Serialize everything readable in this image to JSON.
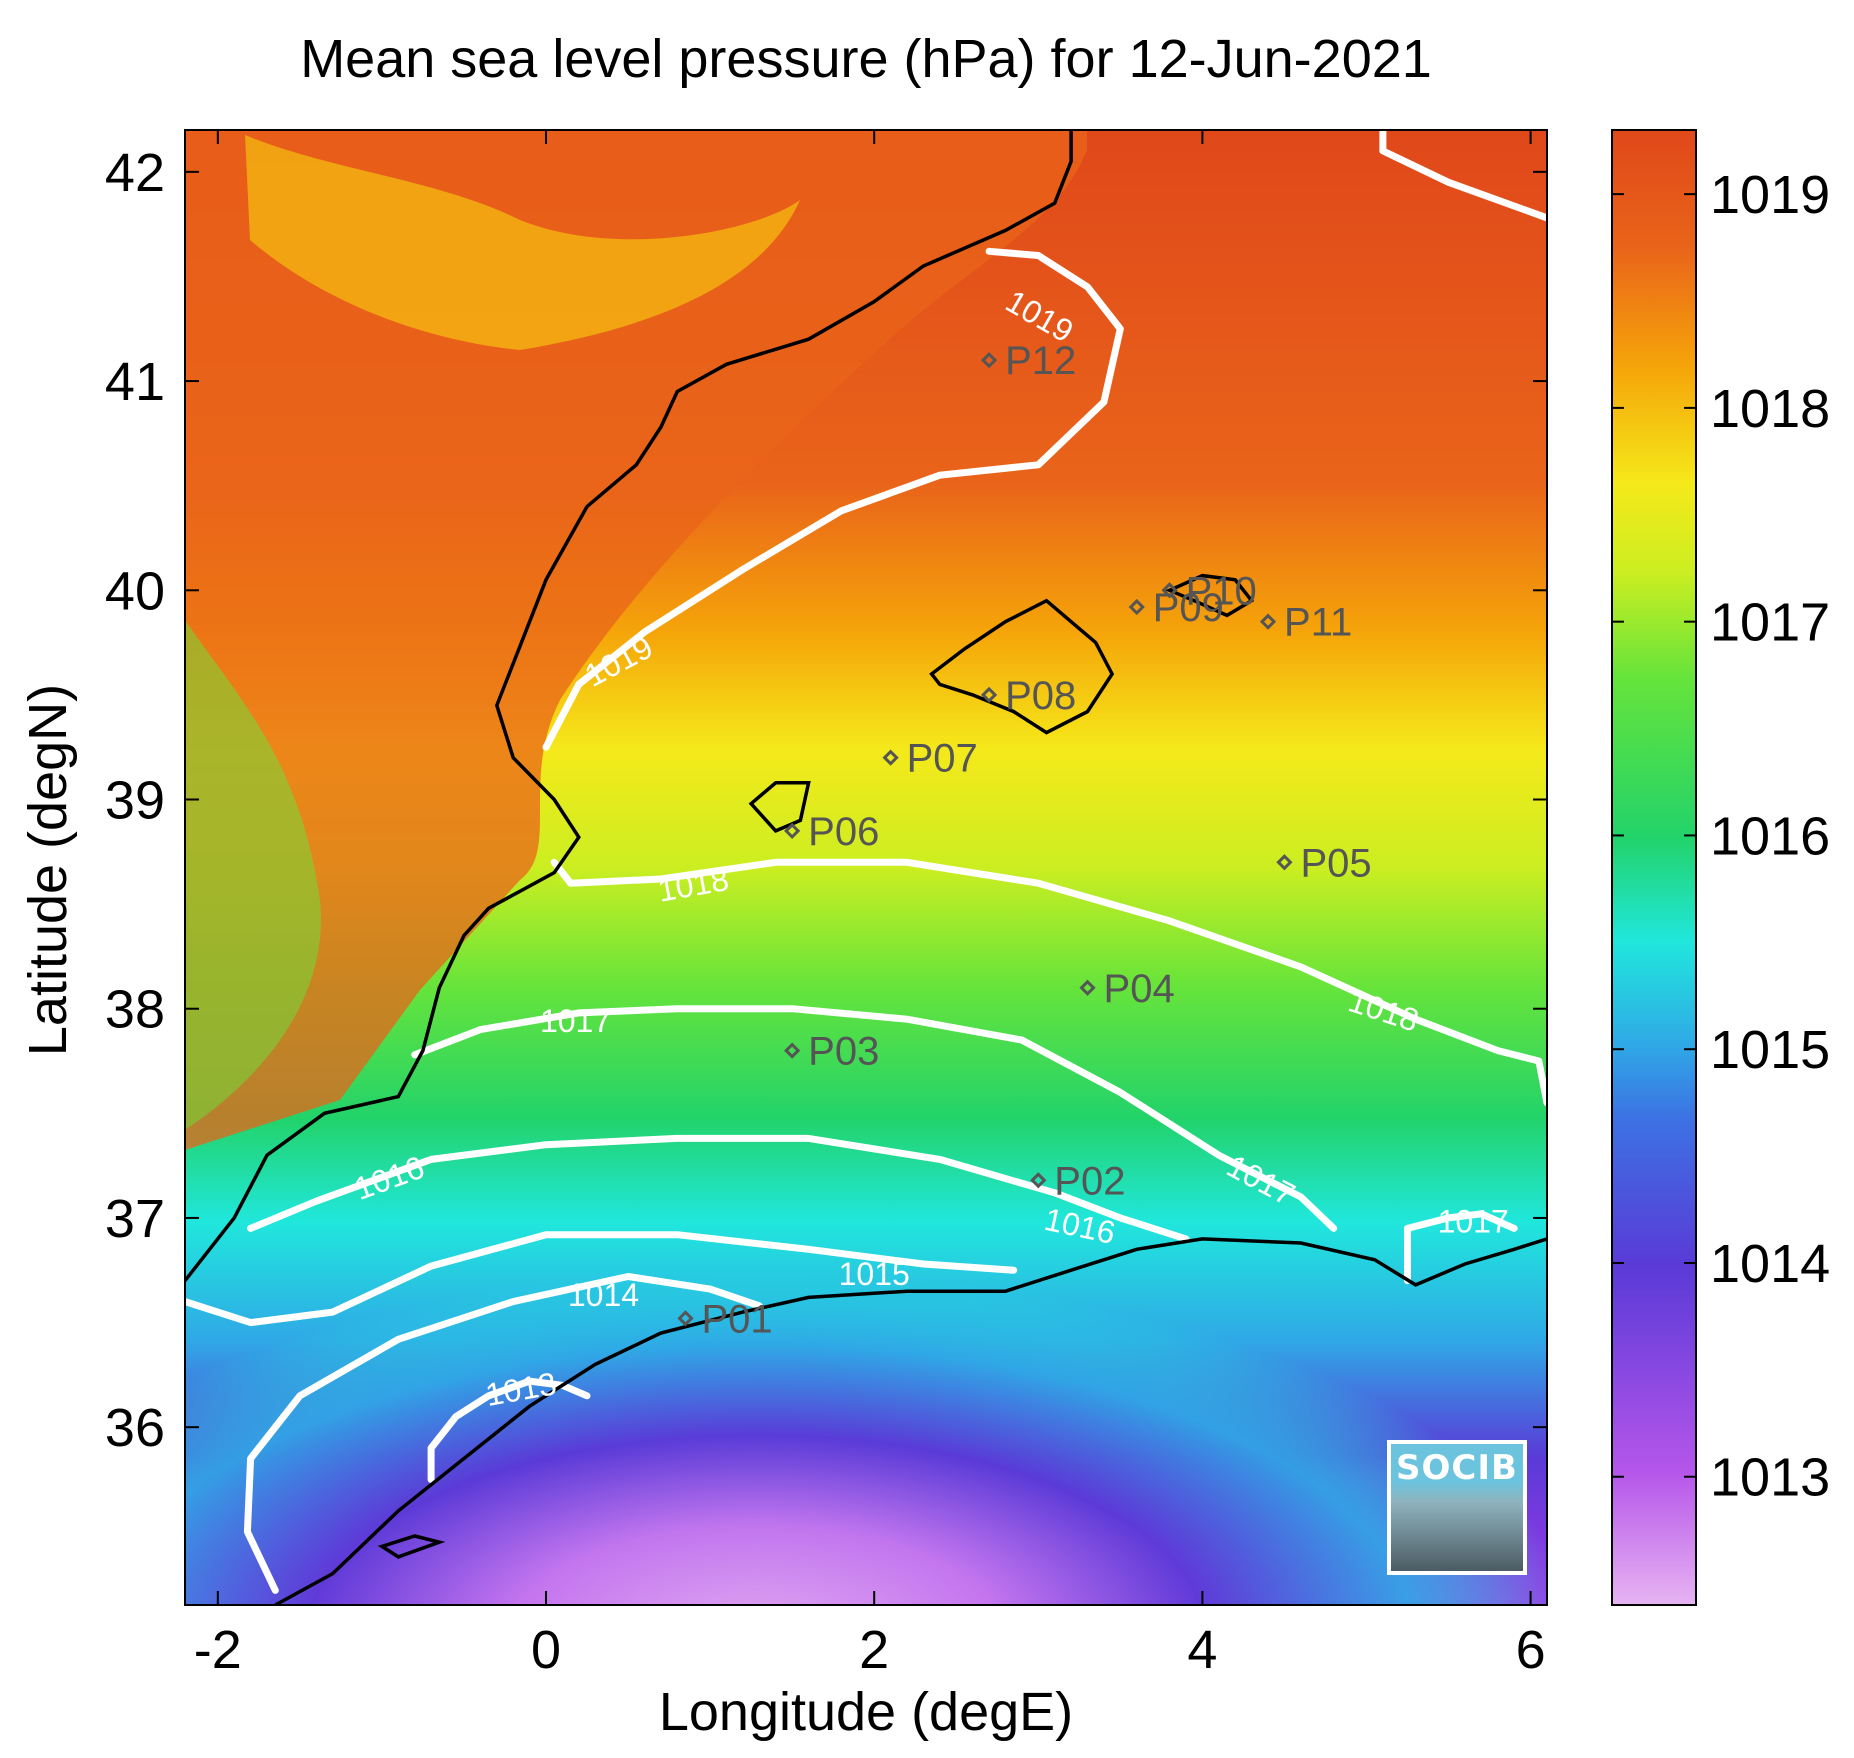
{
  "title": "Mean sea level pressure (hPa) for 12-Jun-2021",
  "xlabel": "Longitude (degE)",
  "ylabel": "Latitude (degN)",
  "x_ticks": [
    "-2",
    "0",
    "2",
    "4",
    "6"
  ],
  "y_ticks": [
    "42",
    "41",
    "40",
    "39",
    "38",
    "37",
    "36"
  ],
  "colorbar_ticks": [
    "1019",
    "1018",
    "1017",
    "1016",
    "1015",
    "1014",
    "1013"
  ],
  "logo_text": "SOCIB",
  "colors": {
    "contour": "#ffffff",
    "coast": "#000000",
    "station": "#555555",
    "cmap": [
      "#e7b4f2",
      "#9f38e6",
      "#5a3ad7",
      "#2fa9e6",
      "#20e7dc",
      "#22d36a",
      "#67e43a",
      "#cbee21",
      "#f5e91a",
      "#f5a409",
      "#e9641a",
      "#e0481a"
    ]
  },
  "chart_data": {
    "type": "heatmap",
    "title": "Mean sea level pressure (hPa) for 12-Jun-2021",
    "xlabel": "Longitude (degE)",
    "ylabel": "Latitude (degN)",
    "xlim": [
      -2.2,
      6.1
    ],
    "ylim": [
      35.15,
      42.2
    ],
    "clim": [
      1012.4,
      1019.3
    ],
    "x_ticks": [
      -2,
      0,
      2,
      4,
      6
    ],
    "y_ticks": [
      36,
      37,
      38,
      39,
      40,
      41,
      42
    ],
    "colorbar_ticks": [
      1013,
      1014,
      1015,
      1016,
      1017,
      1018,
      1019
    ],
    "contours": [
      {
        "level": "1019",
        "points": [
          [
            0.0,
            39.25
          ],
          [
            0.2,
            39.55
          ],
          [
            0.6,
            39.8
          ],
          [
            1.2,
            40.1
          ],
          [
            1.8,
            40.38
          ],
          [
            2.4,
            40.55
          ],
          [
            3.0,
            40.6
          ],
          [
            3.4,
            40.9
          ],
          [
            3.5,
            41.25
          ],
          [
            3.3,
            41.45
          ],
          [
            3.0,
            41.6
          ],
          [
            2.7,
            41.62
          ]
        ]
      },
      {
        "level": "1019",
        "points": [
          [
            5.1,
            42.2
          ],
          [
            5.1,
            42.1
          ],
          [
            5.5,
            41.95
          ],
          [
            6.1,
            41.78
          ]
        ]
      },
      {
        "level": "1018",
        "points": [
          [
            0.05,
            38.7
          ],
          [
            0.15,
            38.6
          ],
          [
            0.7,
            38.62
          ],
          [
            1.4,
            38.7
          ],
          [
            2.2,
            38.7
          ],
          [
            3.0,
            38.6
          ],
          [
            3.8,
            38.42
          ],
          [
            4.6,
            38.2
          ],
          [
            5.3,
            37.95
          ],
          [
            5.8,
            37.8
          ],
          [
            6.05,
            37.75
          ],
          [
            6.1,
            37.55
          ]
        ]
      },
      {
        "level": "1017",
        "points": [
          [
            -0.8,
            37.78
          ],
          [
            -0.4,
            37.9
          ],
          [
            0.2,
            37.98
          ],
          [
            0.8,
            38.0
          ],
          [
            1.5,
            38.0
          ],
          [
            2.2,
            37.95
          ],
          [
            2.9,
            37.85
          ],
          [
            3.5,
            37.6
          ],
          [
            4.1,
            37.3
          ],
          [
            4.6,
            37.1
          ],
          [
            4.8,
            36.95
          ]
        ]
      },
      {
        "level": "1017",
        "points": [
          [
            5.25,
            36.7
          ],
          [
            5.25,
            36.95
          ],
          [
            5.5,
            37.0
          ],
          [
            5.7,
            37.02
          ],
          [
            5.9,
            36.95
          ]
        ]
      },
      {
        "level": "1016",
        "points": [
          [
            -1.8,
            36.95
          ],
          [
            -1.4,
            37.08
          ],
          [
            -0.7,
            37.28
          ],
          [
            0.0,
            37.35
          ],
          [
            0.8,
            37.38
          ],
          [
            1.6,
            37.38
          ],
          [
            2.4,
            37.28
          ],
          [
            3.1,
            37.12
          ],
          [
            3.5,
            37.0
          ],
          [
            3.9,
            36.9
          ]
        ]
      },
      {
        "level": "1015",
        "points": [
          [
            -2.2,
            36.6
          ],
          [
            -1.8,
            36.5
          ],
          [
            -1.3,
            36.55
          ],
          [
            -0.7,
            36.77
          ],
          [
            0.0,
            36.92
          ],
          [
            0.8,
            36.92
          ],
          [
            1.6,
            36.85
          ],
          [
            2.3,
            36.78
          ],
          [
            2.85,
            36.75
          ]
        ]
      },
      {
        "level": "1014",
        "points": [
          [
            -1.65,
            35.22
          ],
          [
            -1.82,
            35.5
          ],
          [
            -1.8,
            35.85
          ],
          [
            -1.5,
            36.15
          ],
          [
            -0.9,
            36.42
          ],
          [
            -0.2,
            36.6
          ],
          [
            0.5,
            36.72
          ],
          [
            1.0,
            36.66
          ],
          [
            1.3,
            36.58
          ]
        ]
      },
      {
        "level": "1013",
        "points": [
          [
            -0.7,
            35.75
          ],
          [
            -0.7,
            35.9
          ],
          [
            -0.55,
            36.05
          ],
          [
            -0.35,
            36.15
          ],
          [
            -0.1,
            36.22
          ],
          [
            0.1,
            36.2
          ],
          [
            0.25,
            36.15
          ]
        ]
      }
    ],
    "contour_labels": [
      {
        "text": "1019",
        "x": 3.0,
        "y": 41.3,
        "angle": 30
      },
      {
        "text": "1019",
        "x": 0.45,
        "y": 39.65,
        "angle": -28
      },
      {
        "text": "1018",
        "x": 0.9,
        "y": 38.58,
        "angle": -10
      },
      {
        "text": "1018",
        "x": 5.1,
        "y": 37.98,
        "angle": 18
      },
      {
        "text": "1017",
        "x": 0.18,
        "y": 37.93,
        "angle": 0
      },
      {
        "text": "1017",
        "x": 4.35,
        "y": 37.17,
        "angle": 28
      },
      {
        "text": "1017",
        "x": 5.65,
        "y": 36.97,
        "angle": 0
      },
      {
        "text": "1016",
        "x": -0.95,
        "y": 37.18,
        "angle": -20
      },
      {
        "text": "1016",
        "x": 3.25,
        "y": 36.95,
        "angle": 12
      },
      {
        "text": "1015",
        "x": 2.0,
        "y": 36.72,
        "angle": 0
      },
      {
        "text": "1014",
        "x": 0.35,
        "y": 36.62,
        "angle": 0
      },
      {
        "text": "1013",
        "x": -0.15,
        "y": 36.17,
        "angle": -10
      }
    ],
    "stations": [
      {
        "name": "P01",
        "x": 0.85,
        "y": 36.52
      },
      {
        "name": "P02",
        "x": 3.0,
        "y": 37.18
      },
      {
        "name": "P03",
        "x": 1.5,
        "y": 37.8
      },
      {
        "name": "P04",
        "x": 3.3,
        "y": 38.1
      },
      {
        "name": "P05",
        "x": 4.5,
        "y": 38.7
      },
      {
        "name": "P06",
        "x": 1.5,
        "y": 38.85
      },
      {
        "name": "P07",
        "x": 2.1,
        "y": 39.2
      },
      {
        "name": "P08",
        "x": 2.7,
        "y": 39.5
      },
      {
        "name": "P09",
        "x": 3.6,
        "y": 39.92
      },
      {
        "name": "P10",
        "x": 3.8,
        "y": 40.0
      },
      {
        "name": "P11",
        "x": 4.4,
        "y": 39.85
      },
      {
        "name": "P12",
        "x": 2.7,
        "y": 41.1
      }
    ],
    "coastline": [
      [
        -2.2,
        36.7
      ],
      [
        -1.9,
        37.0
      ],
      [
        -1.7,
        37.3
      ],
      [
        -1.35,
        37.5
      ],
      [
        -0.9,
        37.58
      ],
      [
        -0.75,
        37.8
      ],
      [
        -0.65,
        38.1
      ],
      [
        -0.5,
        38.35
      ],
      [
        -0.35,
        38.48
      ],
      [
        0.05,
        38.65
      ],
      [
        0.2,
        38.82
      ],
      [
        0.05,
        39.0
      ],
      [
        -0.2,
        39.2
      ],
      [
        -0.3,
        39.45
      ],
      [
        -0.15,
        39.75
      ],
      [
        0.0,
        40.05
      ],
      [
        0.25,
        40.4
      ],
      [
        0.55,
        40.6
      ],
      [
        0.7,
        40.78
      ],
      [
        0.8,
        40.95
      ],
      [
        1.1,
        41.08
      ],
      [
        1.6,
        41.2
      ],
      [
        2.0,
        41.38
      ],
      [
        2.3,
        41.55
      ],
      [
        2.8,
        41.72
      ],
      [
        3.1,
        41.85
      ],
      [
        3.2,
        42.05
      ],
      [
        3.2,
        42.2
      ]
    ],
    "coastline_south": [
      [
        -1.65,
        35.15
      ],
      [
        -1.3,
        35.3
      ],
      [
        -0.9,
        35.6
      ],
      [
        -0.5,
        35.85
      ],
      [
        -0.1,
        36.1
      ],
      [
        0.3,
        36.3
      ],
      [
        0.7,
        36.45
      ],
      [
        1.2,
        36.55
      ],
      [
        1.6,
        36.62
      ],
      [
        2.2,
        36.65
      ],
      [
        2.8,
        36.65
      ],
      [
        3.2,
        36.75
      ],
      [
        3.6,
        36.85
      ],
      [
        4.0,
        36.9
      ],
      [
        4.6,
        36.88
      ],
      [
        5.05,
        36.8
      ],
      [
        5.3,
        36.68
      ],
      [
        5.6,
        36.78
      ],
      [
        5.9,
        36.85
      ],
      [
        6.1,
        36.9
      ]
    ],
    "islands": [
      [
        [
          2.35,
          39.6
        ],
        [
          2.55,
          39.72
        ],
        [
          2.8,
          39.85
        ],
        [
          3.05,
          39.95
        ],
        [
          3.2,
          39.85
        ],
        [
          3.35,
          39.75
        ],
        [
          3.45,
          39.6
        ],
        [
          3.3,
          39.42
        ],
        [
          3.05,
          39.32
        ],
        [
          2.85,
          39.42
        ],
        [
          2.6,
          39.5
        ],
        [
          2.4,
          39.55
        ],
        [
          2.35,
          39.6
        ]
      ],
      [
        [
          3.8,
          40.0
        ],
        [
          4.0,
          40.07
        ],
        [
          4.2,
          40.05
        ],
        [
          4.3,
          39.95
        ],
        [
          4.15,
          39.88
        ],
        [
          3.95,
          39.95
        ],
        [
          3.8,
          40.0
        ]
      ],
      [
        [
          1.25,
          38.98
        ],
        [
          1.4,
          39.08
        ],
        [
          1.6,
          39.08
        ],
        [
          1.55,
          38.9
        ],
        [
          1.4,
          38.85
        ],
        [
          1.25,
          38.98
        ]
      ],
      [
        [
          -1.0,
          35.43
        ],
        [
          -0.8,
          35.48
        ],
        [
          -0.65,
          35.45
        ],
        [
          -0.9,
          35.38
        ],
        [
          -1.0,
          35.43
        ]
      ]
    ]
  }
}
